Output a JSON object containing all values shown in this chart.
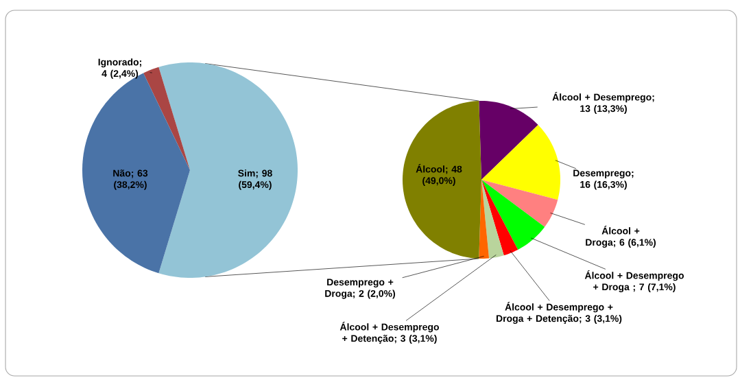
{
  "chart_data": [
    {
      "type": "pie",
      "categories": [
        "Sim",
        "Ignorado",
        "Não"
      ],
      "values": [
        98,
        4,
        63
      ],
      "colors": [
        "#93c4d6",
        "#aa4644",
        "#4a73a7"
      ],
      "value_labels": [
        "; 98 (59,4%)",
        "; 4 (2,4%)",
        "; 63 (38,2%)"
      ]
    },
    {
      "type": "pie",
      "categories": [
        "Álcool + Desemprego",
        "Desemprego",
        "Álcool + Droga",
        "Álcool + Desemprego + Droga ",
        "Álcool + Desemprego + Droga + Detenção",
        "Álcool + Desemprego + Detenção",
        "Desemprego + Droga",
        "Álcool"
      ],
      "values": [
        13,
        16,
        6,
        7,
        3,
        3,
        2,
        48
      ],
      "colors": [
        "#660066",
        "#ffff00",
        "#ff8080",
        "#00ff00",
        "#ff0000",
        "#b9d49c",
        "#ff6600",
        "#808000"
      ],
      "value_labels": [
        "; 13 (13,3%)",
        "; 16 (16,3%)",
        "; 6 (6,1%)",
        "; 7 (7,1%)",
        "; 3 (3,1%)",
        "; 3 (3,1%)",
        "; 2 (2,0%)",
        "; 48 (49,0%)"
      ]
    }
  ]
}
